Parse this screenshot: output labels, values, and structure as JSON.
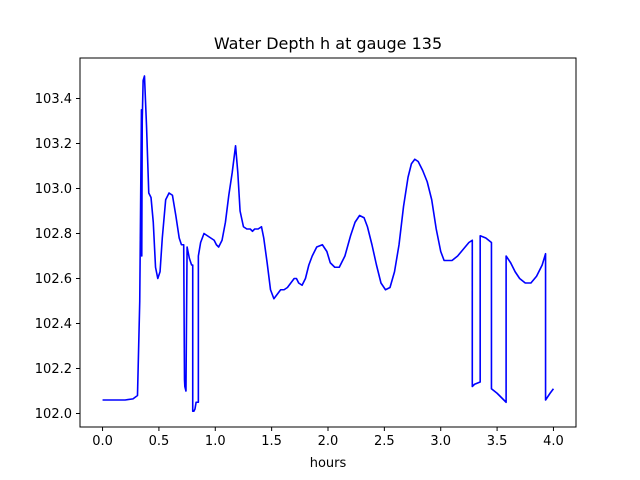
{
  "chart_data": {
    "type": "line",
    "title": "Water Depth h at gauge 135",
    "xlabel": "hours",
    "ylabel": "",
    "xlim": [
      -0.2,
      4.2
    ],
    "ylim": [
      101.94,
      103.58
    ],
    "xticks": [
      0.0,
      0.5,
      1.0,
      1.5,
      2.0,
      2.5,
      3.0,
      3.5,
      4.0
    ],
    "xtick_labels": [
      "0.0",
      "0.5",
      "1.0",
      "1.5",
      "2.0",
      "2.5",
      "3.0",
      "3.5",
      "4.0"
    ],
    "yticks": [
      102.0,
      102.2,
      102.4,
      102.6,
      102.8,
      103.0,
      103.2,
      103.4
    ],
    "ytick_labels": [
      "102.0",
      "102.2",
      "102.4",
      "102.6",
      "102.8",
      "103.0",
      "103.2",
      "103.4"
    ],
    "grid": false,
    "series": [
      {
        "color": "#0000ff",
        "x": [
          0.0,
          0.1,
          0.2,
          0.27,
          0.31,
          0.33,
          0.345,
          0.348,
          0.352,
          0.36,
          0.372,
          0.39,
          0.41,
          0.43,
          0.45,
          0.47,
          0.49,
          0.51,
          0.53,
          0.56,
          0.59,
          0.62,
          0.65,
          0.68,
          0.7,
          0.72,
          0.725,
          0.727,
          0.73,
          0.74,
          0.75,
          0.77,
          0.79,
          0.8,
          0.8,
          0.81,
          0.82,
          0.83,
          0.84,
          0.85,
          0.85,
          0.87,
          0.9,
          0.93,
          0.96,
          0.99,
          1.01,
          1.03,
          1.06,
          1.09,
          1.12,
          1.15,
          1.18,
          1.2,
          1.22,
          1.25,
          1.28,
          1.31,
          1.33,
          1.35,
          1.38,
          1.41,
          1.43,
          1.46,
          1.49,
          1.52,
          1.55,
          1.58,
          1.61,
          1.64,
          1.67,
          1.7,
          1.72,
          1.74,
          1.77,
          1.8,
          1.83,
          1.86,
          1.9,
          1.95,
          1.99,
          2.02,
          2.06,
          2.1,
          2.15,
          2.2,
          2.24,
          2.28,
          2.32,
          2.35,
          2.39,
          2.43,
          2.47,
          2.51,
          2.55,
          2.59,
          2.63,
          2.67,
          2.71,
          2.74,
          2.77,
          2.8,
          2.84,
          2.88,
          2.92,
          2.96,
          3.0,
          3.03,
          3.06,
          3.1,
          3.15,
          3.2,
          3.25,
          3.28,
          3.28,
          3.3,
          3.35,
          3.35,
          3.4,
          3.45,
          3.45,
          3.5,
          3.58,
          3.58,
          3.62,
          3.66,
          3.7,
          3.75,
          3.8,
          3.85,
          3.9,
          3.93,
          3.93,
          3.97,
          4.0
        ],
        "y": [
          102.06,
          102.06,
          102.06,
          102.065,
          102.08,
          102.5,
          103.35,
          102.7,
          103.3,
          103.48,
          103.5,
          103.28,
          102.98,
          102.96,
          102.85,
          102.65,
          102.6,
          102.63,
          102.78,
          102.95,
          102.98,
          102.97,
          102.88,
          102.78,
          102.75,
          102.75,
          102.3,
          102.15,
          102.12,
          102.1,
          102.74,
          102.69,
          102.66,
          102.66,
          102.01,
          102.01,
          102.02,
          102.05,
          102.05,
          102.05,
          102.7,
          102.76,
          102.8,
          102.79,
          102.78,
          102.77,
          102.75,
          102.74,
          102.77,
          102.85,
          102.97,
          103.07,
          103.19,
          103.07,
          102.9,
          102.83,
          102.82,
          102.82,
          102.81,
          102.82,
          102.82,
          102.83,
          102.78,
          102.67,
          102.55,
          102.51,
          102.53,
          102.55,
          102.55,
          102.56,
          102.58,
          102.6,
          102.6,
          102.58,
          102.57,
          102.6,
          102.66,
          102.7,
          102.74,
          102.75,
          102.72,
          102.67,
          102.65,
          102.65,
          102.7,
          102.79,
          102.85,
          102.88,
          102.87,
          102.83,
          102.75,
          102.66,
          102.58,
          102.55,
          102.56,
          102.63,
          102.75,
          102.92,
          103.05,
          103.11,
          103.13,
          103.12,
          103.08,
          103.03,
          102.95,
          102.82,
          102.72,
          102.68,
          102.68,
          102.68,
          102.7,
          102.73,
          102.76,
          102.77,
          102.12,
          102.13,
          102.14,
          102.79,
          102.78,
          102.76,
          102.11,
          102.09,
          102.05,
          102.7,
          102.67,
          102.63,
          102.6,
          102.58,
          102.58,
          102.61,
          102.66,
          102.71,
          102.06,
          102.09,
          102.11
        ]
      }
    ]
  }
}
